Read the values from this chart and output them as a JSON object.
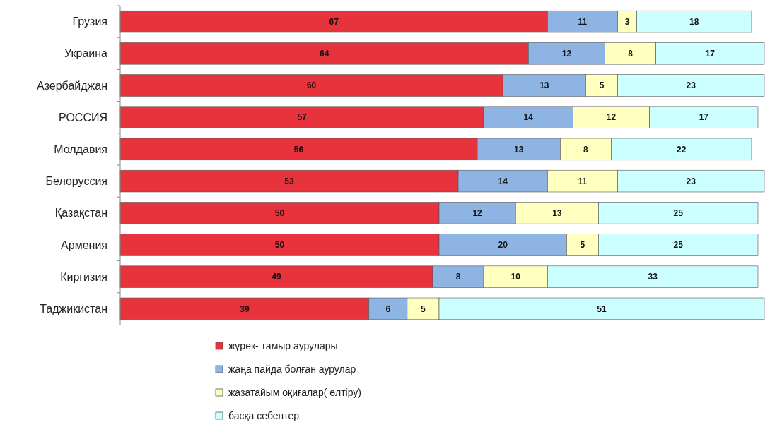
{
  "chart_data": {
    "type": "bar",
    "orientation": "horizontal",
    "stacked": true,
    "data_labels": true,
    "legend": "bottom",
    "tick_labels": "y",
    "categories": [
      "Грузия",
      "Украина",
      "Азербайджан",
      "РОССИЯ",
      "Молдавия",
      "Белоруссия",
      "Қазақстан",
      "Армения",
      "Киргизия",
      "Таджикистан"
    ],
    "series": [
      {
        "name": "жүрек- тамыр аурулары",
        "color": "#e8323c",
        "values": [
          67,
          64,
          60,
          57,
          56,
          53,
          50,
          50,
          49,
          39
        ]
      },
      {
        "name": "жаңа пайда болған аурулар",
        "color": "#8db4e2",
        "values": [
          11,
          12,
          13,
          14,
          13,
          14,
          12,
          20,
          8,
          6
        ]
      },
      {
        "name": "жазатайым оқиғалар( өлтіру)",
        "color": "#ffffc0",
        "values": [
          3,
          8,
          5,
          12,
          8,
          11,
          13,
          5,
          10,
          5
        ]
      },
      {
        "name": "басқа себептер",
        "color": "#ccffff",
        "values": [
          18,
          17,
          23,
          17,
          22,
          23,
          25,
          25,
          33,
          51
        ]
      }
    ]
  }
}
